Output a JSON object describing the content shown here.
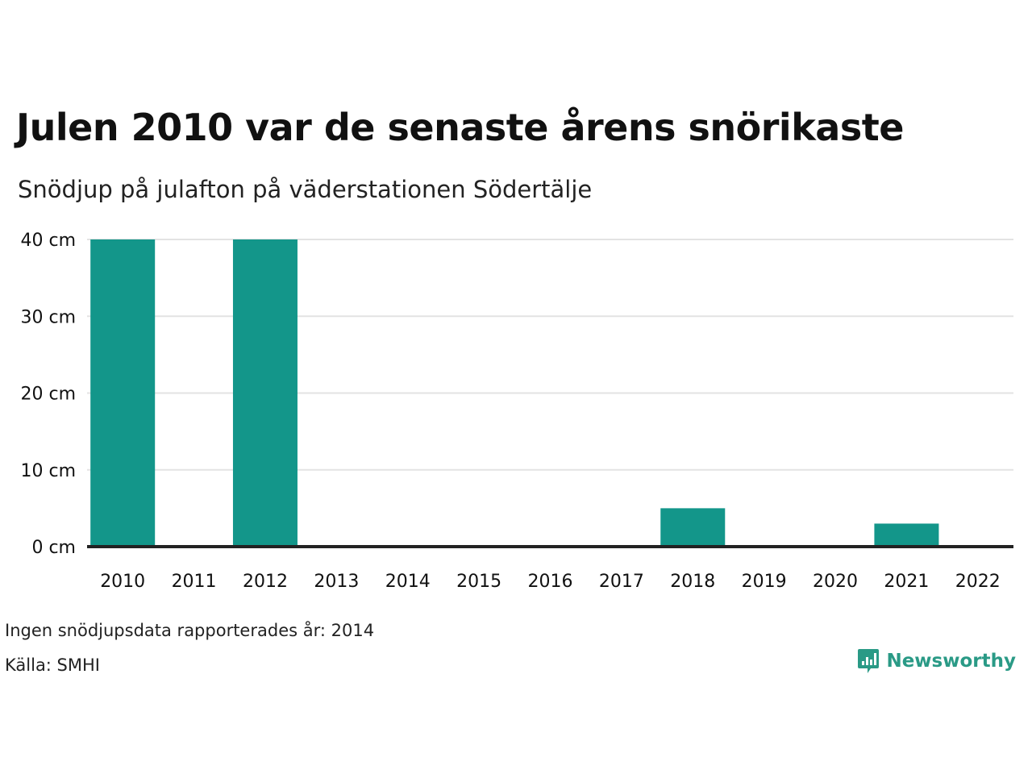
{
  "title": "Julen 2010 var de senaste årens snörikaste",
  "subtitle": "Snödjup på julafton på väderstationen Södertälje",
  "note": "Ingen snödjupsdata rapporterades år: 2014",
  "source": "Källa: SMHI",
  "logo": {
    "text": "Newsworthy",
    "icon": "bar-chart-speech-bubble-icon"
  },
  "colors": {
    "bar": "#13968a",
    "grid": "#e3e3e3",
    "baseline": "#222222",
    "text": "#111111",
    "brand": "#2a9a86"
  },
  "chart_data": {
    "type": "bar",
    "title": "Julen 2010 var de senaste årens snörikaste",
    "subtitle": "Snödjup på julafton på väderstationen Södertälje",
    "categories": [
      "2010",
      "2011",
      "2012",
      "2013",
      "2014",
      "2015",
      "2016",
      "2017",
      "2018",
      "2019",
      "2020",
      "2021",
      "2022"
    ],
    "values": [
      40,
      0,
      40,
      0,
      null,
      0,
      0,
      0,
      5,
      0,
      0,
      3,
      0
    ],
    "unit": "cm",
    "yticks": [
      "0 cm",
      "10 cm",
      "20 cm",
      "30 cm",
      "40 cm"
    ],
    "ytick_values": [
      0,
      10,
      20,
      30,
      40
    ],
    "ylim": [
      0,
      40
    ],
    "xlabel": "",
    "ylabel": "",
    "grid": true,
    "legend": "none"
  }
}
